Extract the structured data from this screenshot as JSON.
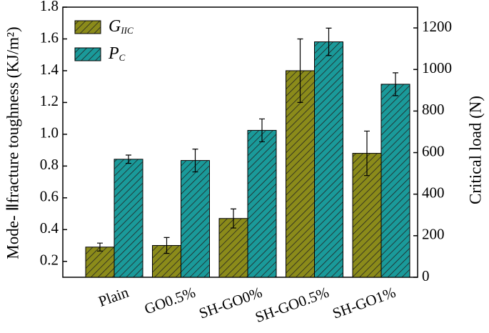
{
  "chart_data": {
    "type": "bar",
    "categories": [
      "Plain",
      "GO0.5%",
      "SH-GO0%",
      "SH-GO0.5%",
      "SH-GO1%"
    ],
    "y_label": "Mode- Ⅱfracture toughness (KJ/m²)",
    "y2_label": "Critical load (N)",
    "series": [
      {
        "name": "GIIC",
        "color": "#8b8b1a",
        "values": [
          0.29,
          0.3,
          0.47,
          1.4,
          0.88
        ],
        "errors": [
          0.025,
          0.05,
          0.06,
          0.2,
          0.14
        ]
      },
      {
        "name": "PC",
        "color": "#1a9a9a",
        "axis": "y2",
        "values": [
          568,
          562,
          707,
          1133,
          929
        ],
        "errors": [
          20,
          55,
          55,
          66,
          55
        ]
      }
    ],
    "ylim": [
      0.1,
      1.8
    ],
    "yticks": [
      0.2,
      0.4,
      0.6,
      0.8,
      {
        "value": 1,
        "label": "1.0"
      },
      1.2,
      1.4,
      1.6,
      1.8
    ],
    "y2lim": [
      0,
      1300
    ],
    "y2ticks": [
      0,
      200,
      400,
      600,
      800,
      1000,
      1200
    ],
    "legend": "upper left"
  }
}
